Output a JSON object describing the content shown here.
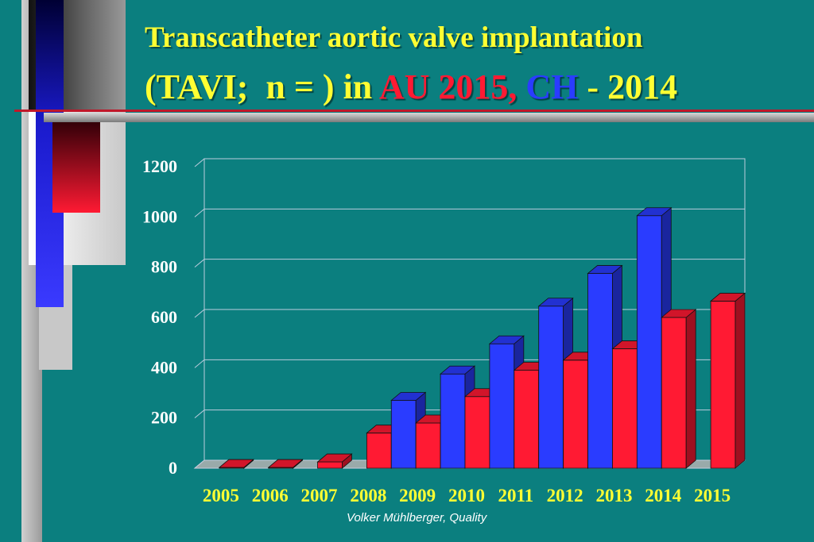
{
  "slide": {
    "title_line1": "Transcatheter aortic valve implantation",
    "title_line2_a": "(TAVI;  n = ) in ",
    "title_line2_au": "AU 2015,",
    "title_line2_sep": " ",
    "title_line2_ch": "CH",
    "title_line2_b": " - 2014",
    "footer": "Volker Mühlberger, Quality"
  },
  "colors": {
    "background": "#0b7f7f",
    "title": "#ffff33",
    "au": "#ff1a33",
    "ch": "#2a3cff",
    "axis_labels": "#ffffff",
    "category_labels": "#ffff33"
  },
  "chart_data": {
    "type": "bar",
    "categories": [
      "2005",
      "2006",
      "2007",
      "2008",
      "2009",
      "2010",
      "2011",
      "2012",
      "2013",
      "2014",
      "2015"
    ],
    "ylim": [
      0,
      1200
    ],
    "yticks": [
      "0",
      "200",
      "400",
      "600",
      "800",
      "1000",
      "1200"
    ],
    "grid": true,
    "three_d": true,
    "series": [
      {
        "color": "#2a3cff",
        "values": [
          null,
          null,
          null,
          null,
          270,
          375,
          495,
          645,
          775,
          1005,
          null
        ]
      },
      {
        "color": "#ff1a33",
        "values": [
          3,
          3,
          25,
          140,
          180,
          285,
          390,
          430,
          475,
          600,
          665
        ]
      }
    ]
  }
}
